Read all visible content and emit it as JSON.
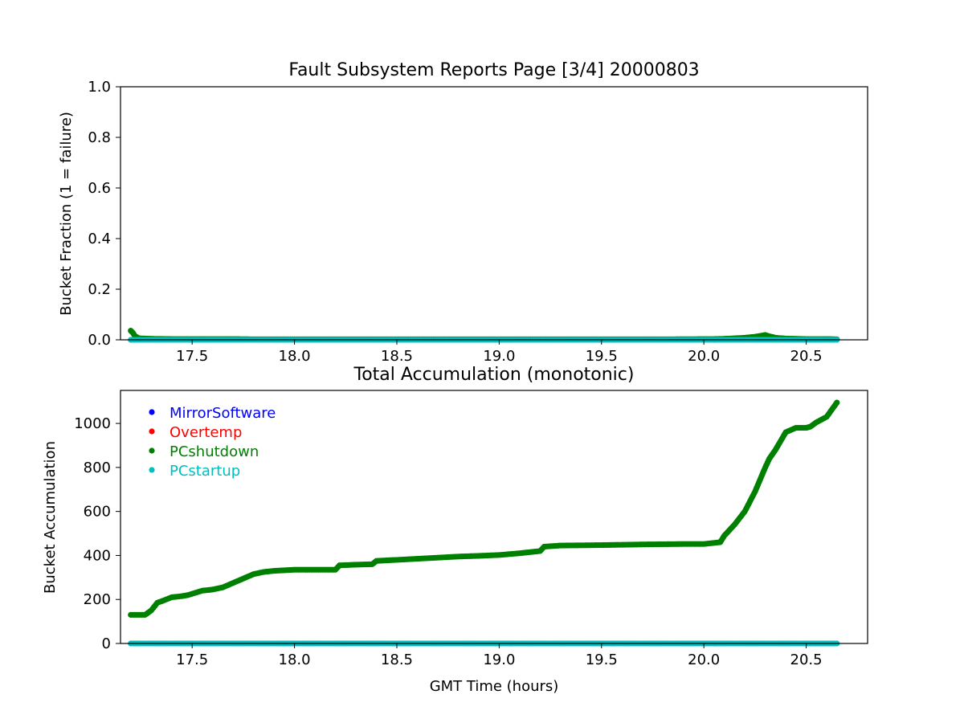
{
  "chart_data": [
    {
      "type": "scatter",
      "title": "Fault Subsystem Reports Page [3/4] 20000803",
      "xlabel": "",
      "ylabel": "Bucket Fraction (1 = failure)",
      "xlim": [
        17.15,
        20.8
      ],
      "ylim": [
        0.0,
        1.0
      ],
      "xticks": [
        "17.5",
        "18.0",
        "18.5",
        "19.0",
        "19.5",
        "20.0",
        "20.5"
      ],
      "xtick_values": [
        17.5,
        18.0,
        18.5,
        19.0,
        19.5,
        20.0,
        20.5
      ],
      "yticks": [
        "0.0",
        "0.2",
        "0.4",
        "0.6",
        "0.8",
        "1.0"
      ],
      "ytick_values": [
        0.0,
        0.2,
        0.4,
        0.6,
        0.8,
        1.0
      ],
      "grid": false,
      "series": [
        {
          "name": "PCshutdown",
          "color": "#008000",
          "x": [
            17.2,
            17.21,
            17.22,
            17.24,
            17.3,
            17.4,
            17.5,
            17.6,
            17.7,
            17.8,
            18.0,
            18.4,
            18.7,
            18.95,
            19.2,
            19.5,
            19.8,
            20.05,
            20.1,
            20.15,
            20.2,
            20.25,
            20.28,
            20.3,
            20.32,
            20.35,
            20.4,
            20.5,
            20.6,
            20.65
          ],
          "y": [
            0.036,
            0.028,
            0.015,
            0.006,
            0.004,
            0.003,
            0.003,
            0.003,
            0.003,
            0.002,
            0.002,
            0.002,
            0.002,
            0.002,
            0.002,
            0.002,
            0.002,
            0.003,
            0.004,
            0.006,
            0.008,
            0.012,
            0.016,
            0.019,
            0.014,
            0.008,
            0.005,
            0.003,
            0.003,
            0.002
          ]
        },
        {
          "name": "PCstartup",
          "color": "#00bfbf",
          "x": [
            17.2,
            17.5,
            17.82,
            18.0,
            18.5,
            19.0,
            19.5,
            20.0,
            20.5,
            20.65
          ],
          "y": [
            0,
            0,
            0,
            0,
            0,
            0,
            0,
            0,
            0,
            0
          ]
        }
      ]
    },
    {
      "type": "scatter",
      "title": "Total Accumulation (monotonic)",
      "xlabel": "GMT Time (hours)",
      "ylabel": "Bucket Accumulation",
      "xlim": [
        17.15,
        20.8
      ],
      "ylim": [
        0,
        1150
      ],
      "xticks": [
        "17.5",
        "18.0",
        "18.5",
        "19.0",
        "19.5",
        "20.0",
        "20.5"
      ],
      "xtick_values": [
        17.5,
        18.0,
        18.5,
        19.0,
        19.5,
        20.0,
        20.5
      ],
      "yticks": [
        "0",
        "200",
        "400",
        "600",
        "800",
        "1000"
      ],
      "ytick_values": [
        0,
        200,
        400,
        600,
        800,
        1000
      ],
      "grid": false,
      "legend_position": "top-left",
      "legend": [
        {
          "name": "MirrorSoftware",
          "color": "#0000ff"
        },
        {
          "name": "Overtemp",
          "color": "#ff0000"
        },
        {
          "name": "PCshutdown",
          "color": "#008000"
        },
        {
          "name": "PCstartup",
          "color": "#00bfbf"
        }
      ],
      "series": [
        {
          "name": "PCshutdown",
          "color": "#008000",
          "x": [
            17.2,
            17.27,
            17.3,
            17.33,
            17.36,
            17.4,
            17.45,
            17.48,
            17.55,
            17.6,
            17.65,
            17.7,
            17.75,
            17.8,
            17.85,
            17.9,
            18.0,
            18.1,
            18.2,
            18.22,
            18.3,
            18.38,
            18.4,
            18.5,
            18.6,
            18.7,
            18.8,
            18.9,
            19.0,
            19.1,
            19.15,
            19.2,
            19.22,
            19.3,
            19.5,
            19.7,
            19.9,
            20.0,
            20.08,
            20.1,
            20.15,
            20.2,
            20.25,
            20.3,
            20.32,
            20.35,
            20.4,
            20.45,
            20.5,
            20.52,
            20.55,
            20.6,
            20.65
          ],
          "y": [
            130,
            130,
            150,
            185,
            195,
            210,
            215,
            220,
            240,
            245,
            255,
            275,
            295,
            315,
            325,
            330,
            335,
            335,
            335,
            355,
            358,
            360,
            375,
            380,
            385,
            390,
            395,
            398,
            402,
            410,
            415,
            420,
            440,
            445,
            447,
            450,
            452,
            452,
            460,
            490,
            540,
            600,
            690,
            800,
            840,
            880,
            960,
            980,
            980,
            985,
            1005,
            1030,
            1095
          ]
        },
        {
          "name": "PCstartup",
          "color": "#00bfbf",
          "x": [
            17.2,
            17.5,
            17.82,
            18.0,
            18.5,
            19.0,
            19.5,
            20.0,
            20.5,
            20.65
          ],
          "y": [
            0,
            0,
            0,
            0,
            0,
            0,
            0,
            0,
            0,
            0
          ]
        }
      ]
    }
  ]
}
